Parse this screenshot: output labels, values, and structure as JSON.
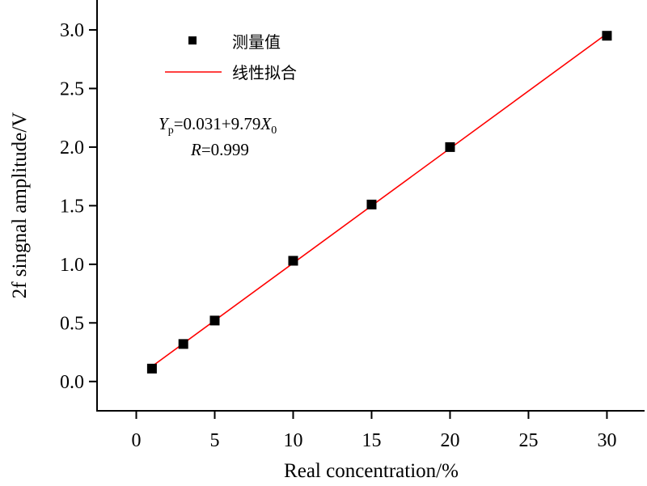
{
  "chart_data": {
    "type": "scatter",
    "title": "",
    "xlabel": "Real concentration/%",
    "ylabel": "2f singnal amplitude/V",
    "xlim": [
      -2.5,
      32.4
    ],
    "ylim": [
      -0.25,
      3.255
    ],
    "xticks": [
      0,
      5,
      10,
      15,
      20,
      25,
      30
    ],
    "xtick_labels": [
      "0",
      "5",
      "10",
      "15",
      "20",
      "25",
      "30"
    ],
    "yticks": [
      0,
      0.5,
      1.0,
      1.5,
      2.0,
      2.5,
      3.0
    ],
    "ytick_labels": [
      "0.0",
      "0.5",
      "1.0",
      "1.5",
      "2.0",
      "2.5",
      "3.0"
    ],
    "grid": false,
    "legend_position": "top-left",
    "series": [
      {
        "name": "测量值",
        "kind": "scatter",
        "color": "#000000",
        "x": [
          1,
          3,
          5,
          10,
          15,
          20,
          30
        ],
        "y": [
          0.11,
          0.32,
          0.52,
          1.03,
          1.51,
          2.0,
          2.95
        ]
      },
      {
        "name": "线性拟合",
        "kind": "line",
        "color": "#ff0000",
        "intercept": 0.031,
        "slope_per_percent": 0.0979,
        "x_range": [
          1,
          30
        ]
      }
    ],
    "annotations": {
      "equation_Y": "Y",
      "equation_sub_p": "p",
      "equation_mid": "=0.031+9.79",
      "equation_X": "X",
      "equation_sub_0": "0",
      "r_label": "R",
      "r_value": "=0.999"
    }
  }
}
